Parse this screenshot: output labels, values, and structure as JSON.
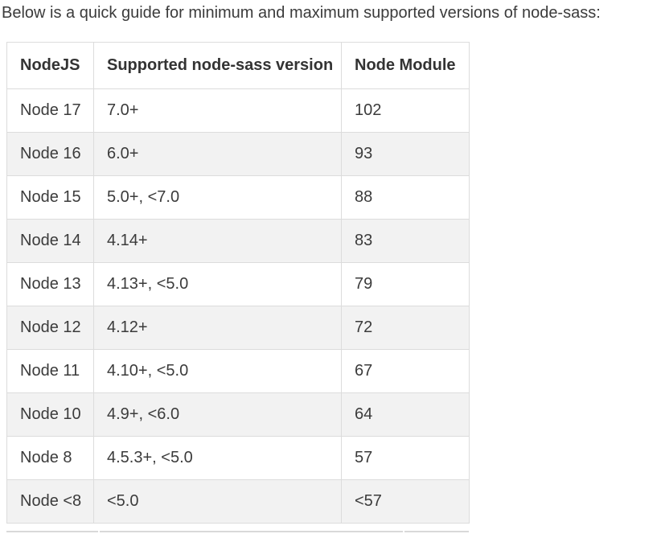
{
  "page": {
    "intro_text": "Below is a quick guide for minimum and maximum supported versions of node-sass:",
    "colors": {
      "text": "#3b3b3b",
      "table_border": "#dcdcdc",
      "row_stripe": "#f2f2f2",
      "background": "#ffffff"
    }
  },
  "table": {
    "columns": [
      "NodeJS",
      "Supported node-sass version",
      "Node Module"
    ],
    "rows": [
      [
        "Node 17",
        "7.0+",
        "102"
      ],
      [
        "Node 16",
        "6.0+",
        "93"
      ],
      [
        "Node 15",
        "5.0+, <7.0",
        "88"
      ],
      [
        "Node 14",
        "4.14+",
        "83"
      ],
      [
        "Node 13",
        "4.13+, <5.0",
        "79"
      ],
      [
        "Node 12",
        "4.12+",
        "72"
      ],
      [
        "Node 11",
        "4.10+, <5.0",
        "67"
      ],
      [
        "Node 10",
        "4.9+, <6.0",
        "64"
      ],
      [
        "Node 8",
        "4.5.3+, <5.0",
        "57"
      ],
      [
        "Node <8",
        "<5.0",
        "<57"
      ]
    ]
  }
}
